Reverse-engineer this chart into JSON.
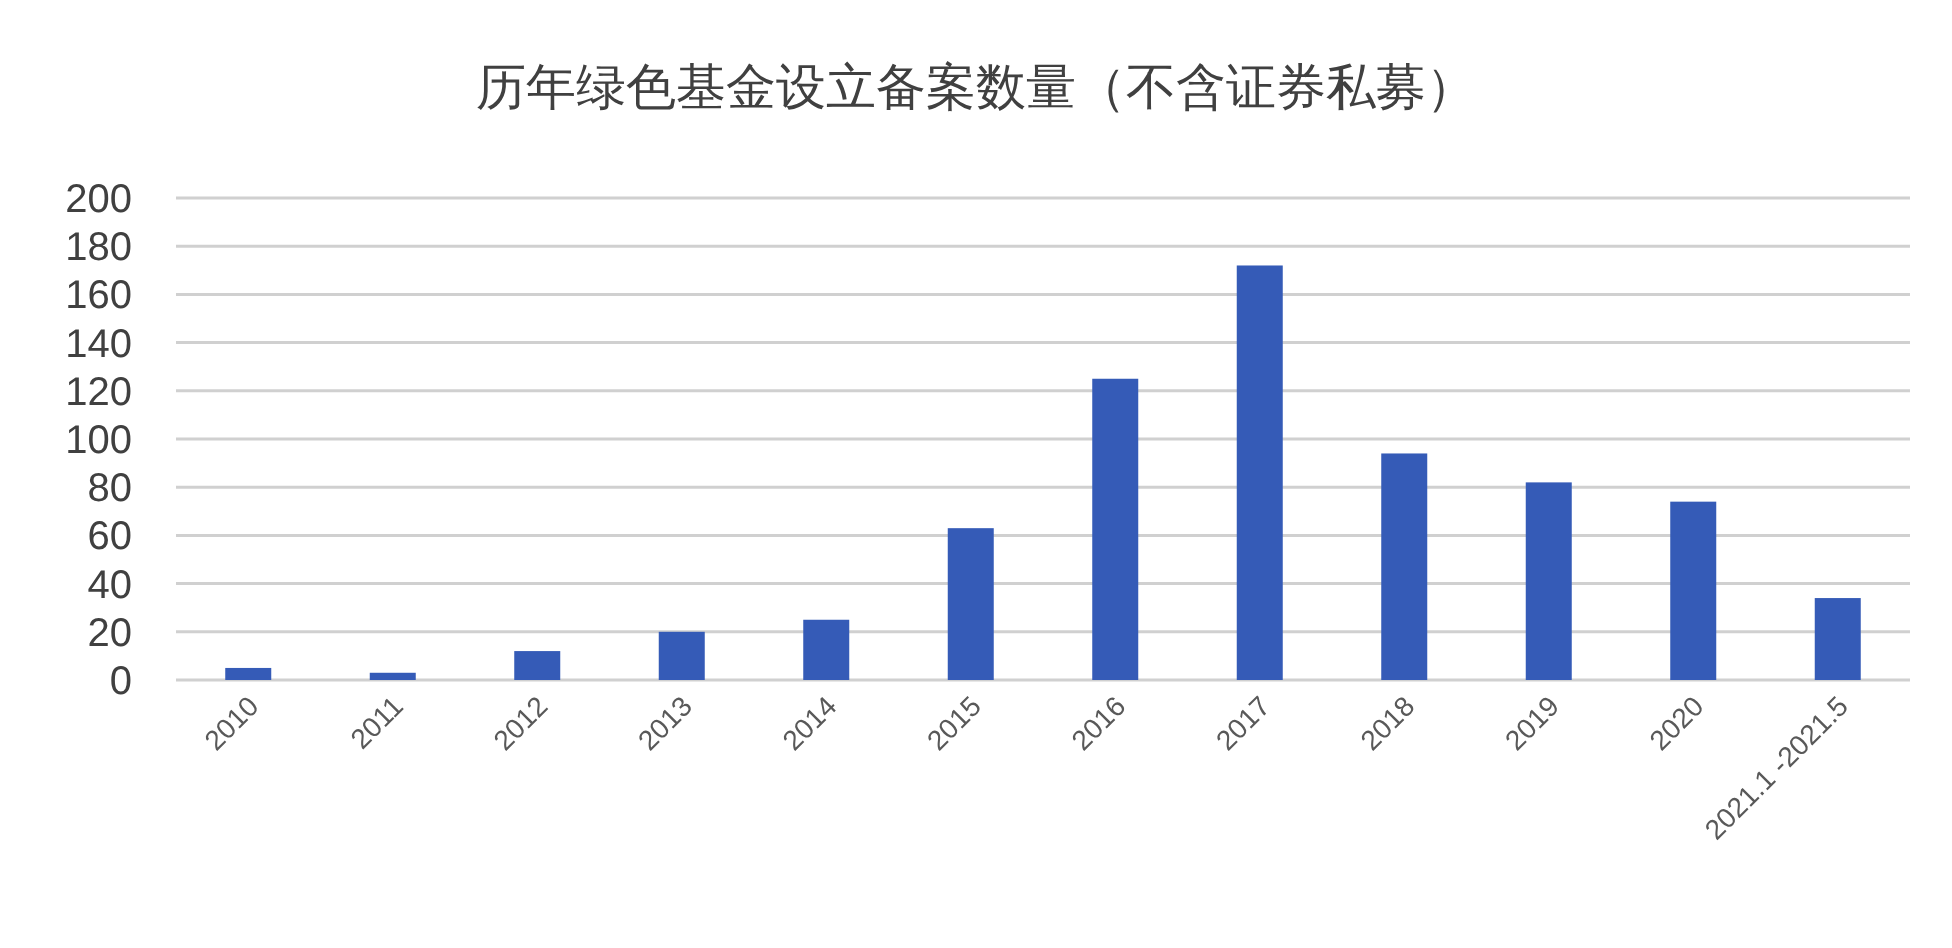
{
  "chart_data": {
    "type": "bar",
    "title": "历年绿色基金设立备案数量（不含证券私募）",
    "categories": [
      "2010",
      "2011",
      "2012",
      "2013",
      "2014",
      "2015",
      "2016",
      "2017",
      "2018",
      "2019",
      "2020",
      "2021.1 -2021.5"
    ],
    "values": [
      5,
      3,
      12,
      20,
      25,
      63,
      125,
      172,
      94,
      82,
      74,
      34
    ],
    "color": "#355bb7",
    "ylim": [
      0,
      200
    ],
    "yticks": [
      0,
      20,
      40,
      60,
      80,
      100,
      120,
      140,
      160,
      180,
      200
    ],
    "grid": "y"
  }
}
